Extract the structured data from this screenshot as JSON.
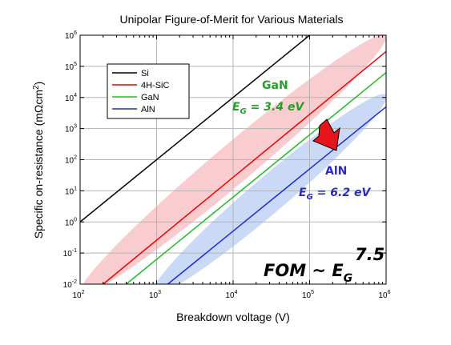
{
  "chart_data": {
    "type": "line",
    "title": "Unipolar Figure-of-Merit for Various Materials",
    "xlabel": "Breakdown voltage (V)",
    "ylabel": "Specific on-resistance (mΩcm²)",
    "ylabel_parts": {
      "main": "Specific on-resistance (mΩcm",
      "sup": "2",
      "end": ")"
    },
    "xscale": "log",
    "yscale": "log",
    "xlim": [
      100,
      1000000
    ],
    "ylim": [
      0.01,
      1000000
    ],
    "grid": true,
    "legend_position": "top-left",
    "x_ticks": [
      {
        "base": "10",
        "exp": "2"
      },
      {
        "base": "10",
        "exp": "3"
      },
      {
        "base": "10",
        "exp": "4"
      },
      {
        "base": "10",
        "exp": "5"
      },
      {
        "base": "10",
        "exp": "6"
      }
    ],
    "y_ticks": [
      {
        "base": "10",
        "exp": "-2"
      },
      {
        "base": "10",
        "exp": "-1"
      },
      {
        "base": "10",
        "exp": "0"
      },
      {
        "base": "10",
        "exp": "1"
      },
      {
        "base": "10",
        "exp": "2"
      },
      {
        "base": "10",
        "exp": "3"
      },
      {
        "base": "10",
        "exp": "4"
      },
      {
        "base": "10",
        "exp": "5"
      },
      {
        "base": "10",
        "exp": "6"
      }
    ],
    "series": [
      {
        "name": "Si",
        "color": "#000000",
        "points": [
          [
            100,
            1.0
          ],
          [
            100000,
            1000000
          ]
        ]
      },
      {
        "name": "4H-SiC",
        "color": "#ee0000",
        "points": [
          [
            200,
            0.01
          ],
          [
            1000000,
            300000
          ]
        ]
      },
      {
        "name": "GaN",
        "color": "#22bb22",
        "points": [
          [
            400,
            0.01
          ],
          [
            1000000,
            63000
          ]
        ]
      },
      {
        "name": "AlN",
        "color": "#1a2bd6",
        "points": [
          [
            1400,
            0.01
          ],
          [
            1000000,
            5000
          ]
        ]
      }
    ],
    "bands": [
      {
        "name": "SiC/GaN band",
        "color": "#f4a3a8",
        "from": [
          100,
          0.005
        ],
        "to": [
          1000000,
          1000000
        ]
      },
      {
        "name": "AlN band",
        "color": "#9fb9ec",
        "from": [
          900,
          0.005
        ],
        "to": [
          1000000,
          12000
        ]
      }
    ],
    "annotations": {
      "gan_label": "GaN",
      "gan_eg_prefix": "E",
      "gan_eg_sub": "G",
      "gan_eg_value": " = 3.4 eV",
      "aln_label": "AlN",
      "aln_eg_prefix": "E",
      "aln_eg_sub": "G",
      "aln_eg_value": " = 6.2 eV",
      "fom_main": "FOM ~ E",
      "fom_sub": "G",
      "fom_exp": "7.5",
      "gan_color": "#22a02a",
      "aln_color": "#2a2bbf",
      "arrow_color": "#e8141c"
    }
  }
}
